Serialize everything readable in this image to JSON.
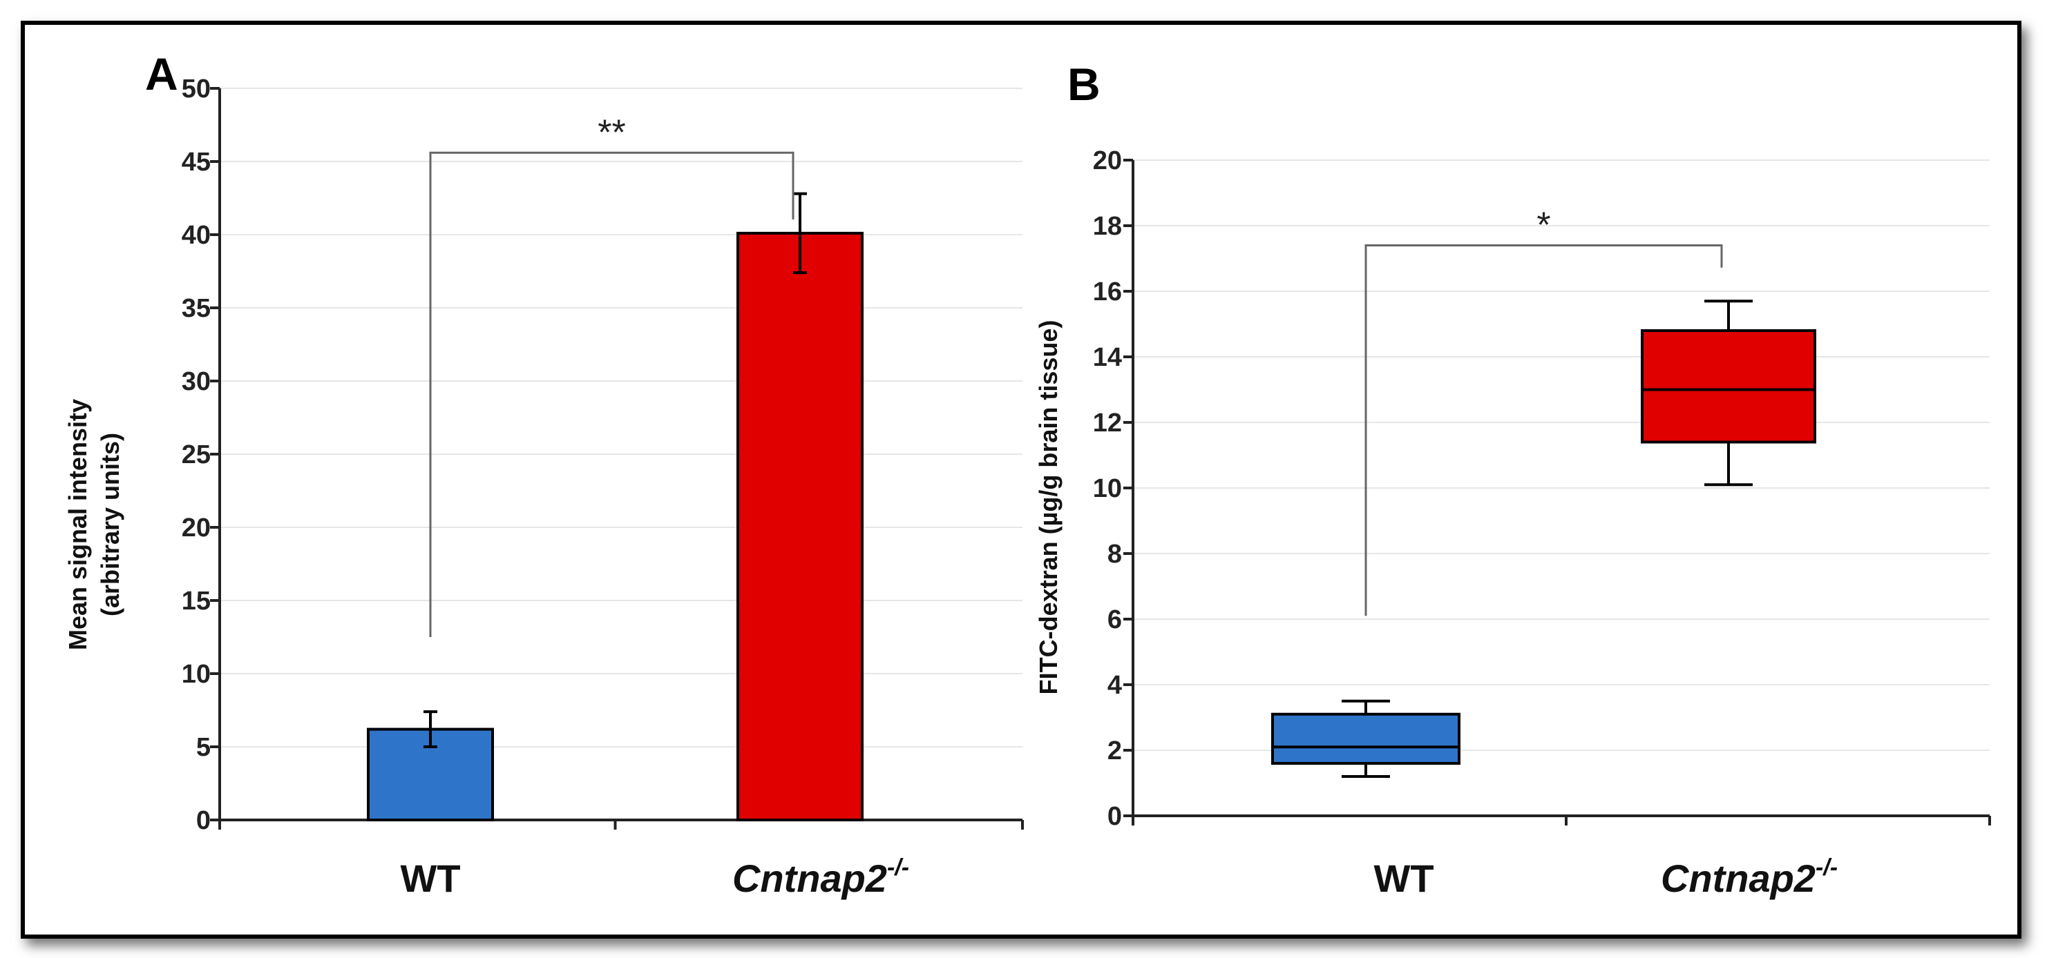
{
  "chart_data": [
    {
      "type": "bar",
      "panel_label": "A",
      "ylabel": [
        "Mean signal intensity",
        "(arbitrary units)"
      ],
      "ylim": [
        0,
        50
      ],
      "yticks": [
        0,
        5,
        10,
        15,
        20,
        25,
        30,
        35,
        40,
        45,
        50
      ],
      "grid": true,
      "categories": [
        {
          "main": "WT",
          "sup": ""
        },
        {
          "main": "Cntnap2",
          "sup": "-/-"
        }
      ],
      "values": [
        6.2,
        40.1
      ],
      "error": [
        1.2,
        2.7
      ],
      "colors": [
        "#2e75c9",
        "#e00000"
      ],
      "significance": {
        "label": "**",
        "from": 0,
        "to": 1,
        "left_y": 12.5,
        "right_y": 40.1,
        "bracket_y": 45.6
      }
    },
    {
      "type": "box",
      "panel_label": "B",
      "ylabel": "FITC-dextran (µg/g brain tissue)",
      "ylim": [
        0,
        20
      ],
      "yticks": [
        0,
        2,
        4,
        6,
        8,
        10,
        12,
        14,
        16,
        18,
        20
      ],
      "grid": true,
      "categories": [
        {
          "main": "WT",
          "sup": ""
        },
        {
          "main": "Cntnap2",
          "sup": "-/-"
        }
      ],
      "boxes": [
        {
          "min": 1.2,
          "q1": 1.6,
          "median": 2.1,
          "q3": 3.1,
          "max": 3.5
        },
        {
          "min": 10.1,
          "q1": 11.4,
          "median": 13.0,
          "q3": 14.8,
          "max": 15.7
        }
      ],
      "colors": [
        "#2e75c9",
        "#e00000"
      ],
      "significance": {
        "label": "*",
        "from": 0,
        "to": 1,
        "left_y": 6.1,
        "right_y": 16.3,
        "bracket_y": 17.4
      }
    }
  ]
}
